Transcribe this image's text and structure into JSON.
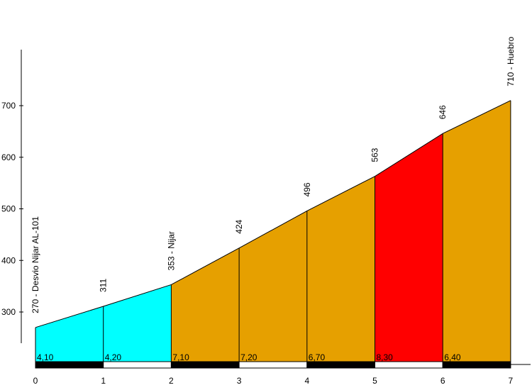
{
  "chart_data": {
    "type": "area",
    "x": [
      0,
      1,
      2,
      3,
      4,
      5,
      6,
      7
    ],
    "y": [
      270,
      311,
      353,
      424,
      496,
      563,
      646,
      710
    ],
    "xlim": [
      0,
      7
    ],
    "ylim": [
      240,
      800
    ],
    "xticks": [
      "0",
      "1",
      "2",
      "3",
      "4",
      "5",
      "6",
      "7"
    ],
    "yticks": [
      300,
      400,
      500,
      600,
      700
    ],
    "ytick_labels": [
      "300",
      "400",
      "500",
      "600",
      "700"
    ],
    "point_labels": [
      "270 - Desvio Nijar AL-101",
      "311",
      "353 - Nijar",
      "424",
      "496",
      "563",
      "646",
      "710 - Huebro"
    ],
    "segments": [
      {
        "gradient": "4,10",
        "color": "#00ffff"
      },
      {
        "gradient": "4,20",
        "color": "#00ffff"
      },
      {
        "gradient": "7,10",
        "color": "#e6a000"
      },
      {
        "gradient": "7,20",
        "color": "#e6a000"
      },
      {
        "gradient": "6,70",
        "color": "#e6a000"
      },
      {
        "gradient": "8,30",
        "color": "#ff0000"
      },
      {
        "gradient": "6,40",
        "color": "#e6a000"
      }
    ],
    "grid": false,
    "legend": "none"
  }
}
